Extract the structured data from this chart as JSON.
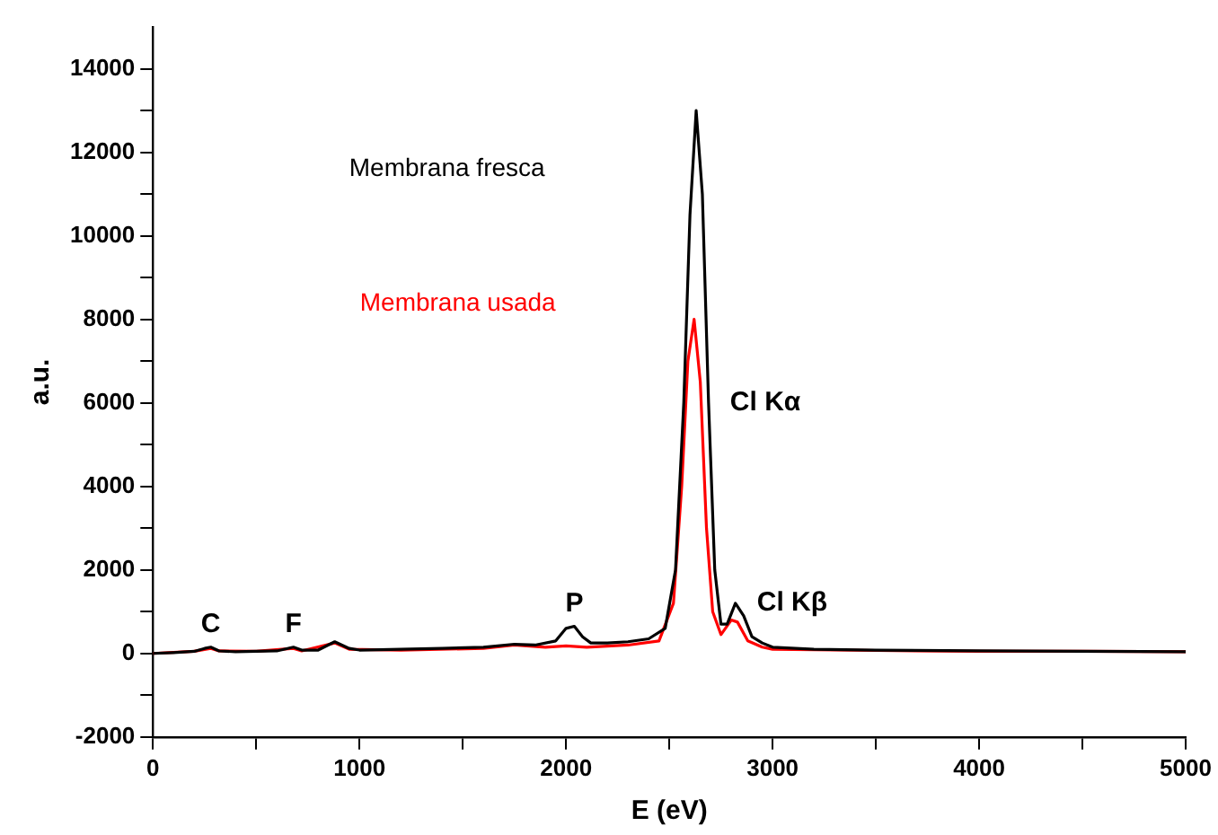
{
  "chart_data": {
    "type": "line",
    "xlabel": "E (eV)",
    "ylabel": "a.u.",
    "xlim": [
      0,
      5000
    ],
    "ylim": [
      -2000,
      15000
    ],
    "xticks": [
      0,
      {
        "value": 500,
        "label": null
      },
      1000,
      {
        "value": 1500,
        "label": null
      },
      2000,
      {
        "value": 2500,
        "label": null
      },
      3000,
      {
        "value": 3500,
        "label": null
      },
      4000,
      {
        "value": 4500,
        "label": null
      },
      5000
    ],
    "yticks": [
      -2000,
      {
        "value": -1000,
        "label": null
      },
      0,
      {
        "value": 1000,
        "label": null
      },
      2000,
      {
        "value": 3000,
        "label": null
      },
      4000,
      {
        "value": 5000,
        "label": null
      },
      6000,
      {
        "value": 7000,
        "label": null
      },
      8000,
      {
        "value": 9000,
        "label": null
      },
      10000,
      {
        "value": 11000,
        "label": null
      },
      12000,
      {
        "value": 13000,
        "label": null
      },
      14000
    ],
    "grid": false,
    "legend": false,
    "marker": "none",
    "line_style": "solid",
    "series": [
      {
        "name": "Membrana fresca",
        "color": "#000000",
        "x": [
          0,
          100,
          200,
          250,
          280,
          320,
          400,
          500,
          600,
          680,
          720,
          800,
          880,
          950,
          1000,
          1200,
          1400,
          1600,
          1750,
          1850,
          1950,
          2000,
          2040,
          2080,
          2120,
          2200,
          2300,
          2400,
          2480,
          2530,
          2570,
          2600,
          2630,
          2660,
          2690,
          2720,
          2750,
          2780,
          2820,
          2860,
          2900,
          2950,
          3000,
          3200,
          3500,
          4000,
          4500,
          5000
        ],
        "values": [
          0,
          20,
          50,
          120,
          150,
          60,
          40,
          50,
          60,
          150,
          80,
          80,
          280,
          120,
          80,
          100,
          120,
          150,
          220,
          200,
          300,
          600,
          650,
          400,
          250,
          250,
          280,
          350,
          600,
          2000,
          6000,
          10500,
          13000,
          11000,
          6000,
          2000,
          700,
          700,
          1200,
          900,
          400,
          250,
          150,
          100,
          80,
          60,
          50,
          40
        ]
      },
      {
        "name": "Membrana usada",
        "color": "#ff0000",
        "x": [
          0,
          200,
          280,
          320,
          500,
          680,
          720,
          880,
          950,
          1200,
          1600,
          1750,
          1900,
          2000,
          2100,
          2300,
          2450,
          2520,
          2560,
          2590,
          2620,
          2650,
          2680,
          2710,
          2750,
          2800,
          2830,
          2880,
          2950,
          3000,
          3500,
          4000,
          4500,
          5000
        ],
        "values": [
          0,
          50,
          120,
          60,
          50,
          120,
          60,
          250,
          100,
          80,
          120,
          200,
          150,
          180,
          150,
          200,
          300,
          1200,
          4000,
          7000,
          8000,
          6500,
          3000,
          1000,
          450,
          800,
          750,
          300,
          150,
          100,
          70,
          50,
          50,
          40
        ]
      }
    ],
    "annotations": [
      {
        "text": "C",
        "x": 280,
        "y": 150
      },
      {
        "text": "F",
        "x": 680,
        "y": 150
      },
      {
        "text": "P",
        "x": 2040,
        "y": 650
      },
      {
        "text": "Cl Kα",
        "x": 2690,
        "y": 6000
      },
      {
        "text": "Cl Kβ",
        "x": 2820,
        "y": 1200
      }
    ]
  }
}
